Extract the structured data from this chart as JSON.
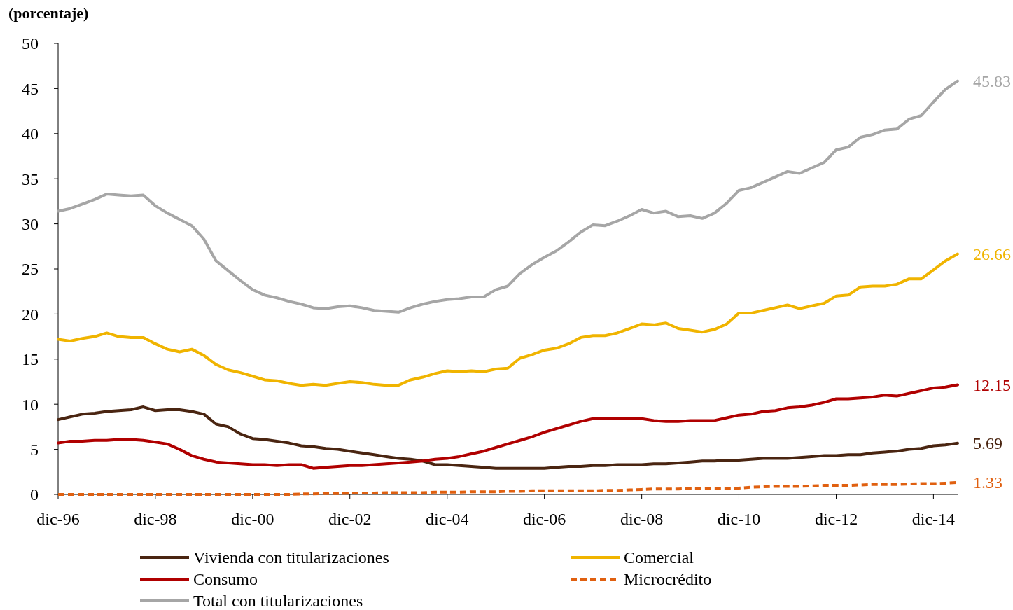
{
  "chart_data": {
    "type": "line",
    "ylabel": "(porcentaje)",
    "x": [
      "1996-12",
      "1997-03",
      "1997-06",
      "1997-09",
      "1997-12",
      "1998-03",
      "1998-06",
      "1998-09",
      "1998-12",
      "1999-03",
      "1999-06",
      "1999-09",
      "1999-12",
      "2000-03",
      "2000-06",
      "2000-09",
      "2000-12",
      "2001-03",
      "2001-06",
      "2001-09",
      "2001-12",
      "2002-03",
      "2002-06",
      "2002-09",
      "2002-12",
      "2003-03",
      "2003-06",
      "2003-09",
      "2003-12",
      "2004-03",
      "2004-06",
      "2004-09",
      "2004-12",
      "2005-03",
      "2005-06",
      "2005-09",
      "2005-12",
      "2006-03",
      "2006-06",
      "2006-09",
      "2006-12",
      "2007-03",
      "2007-06",
      "2007-09",
      "2007-12",
      "2008-03",
      "2008-06",
      "2008-09",
      "2008-12",
      "2009-03",
      "2009-06",
      "2009-09",
      "2009-12",
      "2010-03",
      "2010-06",
      "2010-09",
      "2010-12",
      "2011-03",
      "2011-06",
      "2011-09",
      "2011-12",
      "2012-03",
      "2012-06",
      "2012-09",
      "2012-12",
      "2013-03",
      "2013-06",
      "2013-09",
      "2013-12",
      "2014-03",
      "2014-06",
      "2014-09",
      "2014-12",
      "2015-03",
      "2015-06"
    ],
    "xlim": [
      "1996-12",
      "2015-06"
    ],
    "xticks": [
      {
        "value": "1996-12",
        "label": "dic-96"
      },
      {
        "value": "1998-12",
        "label": "dic-98"
      },
      {
        "value": "2000-12",
        "label": "dic-00"
      },
      {
        "value": "2002-12",
        "label": "dic-02"
      },
      {
        "value": "2004-12",
        "label": "dic-04"
      },
      {
        "value": "2006-12",
        "label": "dic-06"
      },
      {
        "value": "2008-12",
        "label": "dic-08"
      },
      {
        "value": "2010-12",
        "label": "dic-10"
      },
      {
        "value": "2012-12",
        "label": "dic-12"
      },
      {
        "value": "2014-12",
        "label": "dic-14"
      }
    ],
    "ylim": [
      0,
      50
    ],
    "yticks": [
      0,
      5,
      10,
      15,
      20,
      25,
      30,
      35,
      40,
      45,
      50
    ],
    "grid": false,
    "legend": "bottom",
    "line_style": "solid",
    "marker": "none",
    "series": [
      {
        "name": "Vivienda con titularizaciones",
        "color": "#4a2511",
        "values": [
          8.3,
          8.6,
          8.9,
          9.0,
          9.2,
          9.3,
          9.4,
          9.7,
          9.3,
          9.4,
          9.4,
          9.2,
          8.9,
          7.8,
          7.5,
          6.7,
          6.2,
          6.1,
          5.9,
          5.7,
          5.4,
          5.3,
          5.1,
          5.0,
          4.8,
          4.6,
          4.4,
          4.2,
          4.0,
          3.9,
          3.7,
          3.3,
          3.3,
          3.2,
          3.1,
          3.0,
          2.9,
          2.9,
          2.9,
          2.9,
          2.9,
          3.0,
          3.1,
          3.1,
          3.2,
          3.2,
          3.3,
          3.3,
          3.3,
          3.4,
          3.4,
          3.5,
          3.6,
          3.7,
          3.7,
          3.8,
          3.8,
          3.9,
          4.0,
          4.0,
          4.0,
          4.1,
          4.2,
          4.3,
          4.3,
          4.4,
          4.4,
          4.6,
          4.7,
          4.8,
          5.0,
          5.1,
          5.4,
          5.5,
          5.69
        ],
        "value_labels": [
          null,
          null,
          null,
          null,
          null,
          null,
          null,
          null,
          null,
          null,
          null,
          null,
          null,
          null,
          null,
          null,
          null,
          null,
          null,
          null,
          null,
          null,
          null,
          null,
          null,
          null,
          null,
          null,
          null,
          null,
          null,
          null,
          null,
          null,
          null,
          null,
          null,
          null,
          null,
          null,
          null,
          null,
          null,
          null,
          null,
          null,
          null,
          null,
          null,
          null,
          null,
          null,
          null,
          null,
          null,
          null,
          null,
          null,
          null,
          null,
          null,
          null,
          null,
          null,
          null,
          null,
          null,
          null,
          null,
          null,
          null,
          null,
          null,
          null,
          "5.69"
        ]
      },
      {
        "name": "Comercial",
        "color": "#f0b400",
        "values": [
          17.2,
          17.0,
          17.3,
          17.5,
          17.9,
          17.5,
          17.4,
          17.4,
          16.7,
          16.1,
          15.8,
          16.1,
          15.4,
          14.4,
          13.8,
          13.5,
          13.1,
          12.7,
          12.6,
          12.3,
          12.1,
          12.2,
          12.1,
          12.3,
          12.5,
          12.4,
          12.2,
          12.1,
          12.1,
          12.7,
          13.0,
          13.4,
          13.7,
          13.6,
          13.7,
          13.6,
          13.9,
          14.0,
          15.1,
          15.5,
          16.0,
          16.2,
          16.7,
          17.4,
          17.6,
          17.6,
          17.9,
          18.4,
          18.9,
          18.8,
          19.0,
          18.4,
          18.2,
          18.0,
          18.3,
          18.9,
          20.1,
          20.1,
          20.4,
          20.7,
          21.0,
          20.6,
          20.9,
          21.2,
          22.0,
          22.1,
          23.0,
          23.1,
          23.1,
          23.3,
          23.9,
          23.9,
          24.9,
          25.9,
          26.66
        ],
        "value_labels": [
          null,
          null,
          null,
          null,
          null,
          null,
          null,
          null,
          null,
          null,
          null,
          null,
          null,
          null,
          null,
          null,
          null,
          null,
          null,
          null,
          null,
          null,
          null,
          null,
          null,
          null,
          null,
          null,
          null,
          null,
          null,
          null,
          null,
          null,
          null,
          null,
          null,
          null,
          null,
          null,
          null,
          null,
          null,
          null,
          null,
          null,
          null,
          null,
          null,
          null,
          null,
          null,
          null,
          null,
          null,
          null,
          null,
          null,
          null,
          null,
          null,
          null,
          null,
          null,
          null,
          null,
          null,
          null,
          null,
          null,
          null,
          null,
          null,
          null,
          "26.66"
        ]
      },
      {
        "name": "Consumo",
        "color": "#b00000",
        "values": [
          5.7,
          5.9,
          5.9,
          6.0,
          6.0,
          6.1,
          6.1,
          6.0,
          5.8,
          5.6,
          5.0,
          4.3,
          3.9,
          3.6,
          3.5,
          3.4,
          3.3,
          3.3,
          3.2,
          3.3,
          3.3,
          2.9,
          3.0,
          3.1,
          3.2,
          3.2,
          3.3,
          3.4,
          3.5,
          3.6,
          3.7,
          3.9,
          4.0,
          4.2,
          4.5,
          4.8,
          5.2,
          5.6,
          6.0,
          6.4,
          6.9,
          7.3,
          7.7,
          8.1,
          8.4,
          8.4,
          8.4,
          8.4,
          8.4,
          8.2,
          8.1,
          8.1,
          8.2,
          8.2,
          8.2,
          8.5,
          8.8,
          8.9,
          9.2,
          9.3,
          9.6,
          9.7,
          9.9,
          10.2,
          10.6,
          10.6,
          10.7,
          10.8,
          11.0,
          10.9,
          11.2,
          11.5,
          11.8,
          11.9,
          12.15
        ],
        "value_labels": [
          null,
          null,
          null,
          null,
          null,
          null,
          null,
          null,
          null,
          null,
          null,
          null,
          null,
          null,
          null,
          null,
          null,
          null,
          null,
          null,
          null,
          null,
          null,
          null,
          null,
          null,
          null,
          null,
          null,
          null,
          null,
          null,
          null,
          null,
          null,
          null,
          null,
          null,
          null,
          null,
          null,
          null,
          null,
          null,
          null,
          null,
          null,
          null,
          null,
          null,
          null,
          null,
          null,
          null,
          null,
          null,
          null,
          null,
          null,
          null,
          null,
          null,
          null,
          null,
          null,
          null,
          null,
          null,
          null,
          null,
          null,
          null,
          null,
          null,
          "12.15"
        ]
      },
      {
        "name": "Microcrédito",
        "color": "#e06010",
        "line_style": "dashed",
        "values": [
          0,
          0,
          0,
          0,
          0,
          0,
          0,
          0,
          0,
          0,
          0,
          0,
          0,
          0,
          0,
          0,
          0,
          0,
          0,
          0,
          0.05,
          0.05,
          0.1,
          0.1,
          0.15,
          0.15,
          0.15,
          0.2,
          0.2,
          0.2,
          0.2,
          0.25,
          0.25,
          0.25,
          0.3,
          0.3,
          0.3,
          0.35,
          0.35,
          0.4,
          0.4,
          0.4,
          0.4,
          0.4,
          0.4,
          0.45,
          0.45,
          0.5,
          0.55,
          0.6,
          0.6,
          0.6,
          0.65,
          0.65,
          0.7,
          0.7,
          0.7,
          0.8,
          0.85,
          0.9,
          0.9,
          0.9,
          0.95,
          1.0,
          1.0,
          1.0,
          1.05,
          1.1,
          1.1,
          1.1,
          1.15,
          1.2,
          1.2,
          1.25,
          1.33
        ],
        "value_labels": [
          null,
          null,
          null,
          null,
          null,
          null,
          null,
          null,
          null,
          null,
          null,
          null,
          null,
          null,
          null,
          null,
          null,
          null,
          null,
          null,
          null,
          null,
          null,
          null,
          null,
          null,
          null,
          null,
          null,
          null,
          null,
          null,
          null,
          null,
          null,
          null,
          null,
          null,
          null,
          null,
          null,
          null,
          null,
          null,
          null,
          null,
          null,
          null,
          null,
          null,
          null,
          null,
          null,
          null,
          null,
          null,
          null,
          null,
          null,
          null,
          null,
          null,
          null,
          null,
          null,
          null,
          null,
          null,
          null,
          null,
          null,
          null,
          null,
          null,
          "1.33"
        ]
      },
      {
        "name": "Total con titularizaciones",
        "color": "#a6a6a6",
        "values": [
          31.4,
          31.7,
          32.2,
          32.7,
          33.3,
          33.2,
          33.1,
          33.2,
          32.0,
          31.2,
          30.5,
          29.8,
          28.3,
          25.9,
          24.8,
          23.7,
          22.7,
          22.1,
          21.8,
          21.4,
          21.1,
          20.7,
          20.6,
          20.8,
          20.9,
          20.7,
          20.4,
          20.3,
          20.2,
          20.7,
          21.1,
          21.4,
          21.6,
          21.7,
          21.9,
          21.9,
          22.7,
          23.1,
          24.5,
          25.5,
          26.3,
          27.0,
          28.0,
          29.1,
          29.9,
          29.8,
          30.3,
          30.9,
          31.6,
          31.2,
          31.4,
          30.8,
          30.9,
          30.6,
          31.2,
          32.3,
          33.7,
          34.0,
          34.6,
          35.2,
          35.8,
          35.6,
          36.2,
          36.8,
          38.2,
          38.5,
          39.6,
          39.9,
          40.4,
          40.5,
          41.6,
          42.0,
          43.5,
          44.9,
          45.83
        ],
        "value_labels": [
          null,
          null,
          null,
          null,
          null,
          null,
          null,
          null,
          null,
          null,
          null,
          null,
          null,
          null,
          null,
          null,
          null,
          null,
          null,
          null,
          null,
          null,
          null,
          null,
          null,
          null,
          null,
          null,
          null,
          null,
          null,
          null,
          null,
          null,
          null,
          null,
          null,
          null,
          null,
          null,
          null,
          null,
          null,
          null,
          null,
          null,
          null,
          null,
          null,
          null,
          null,
          null,
          null,
          null,
          null,
          null,
          null,
          null,
          null,
          null,
          null,
          null,
          null,
          null,
          null,
          null,
          null,
          null,
          null,
          null,
          null,
          null,
          null,
          null,
          "45.83"
        ]
      }
    ]
  }
}
